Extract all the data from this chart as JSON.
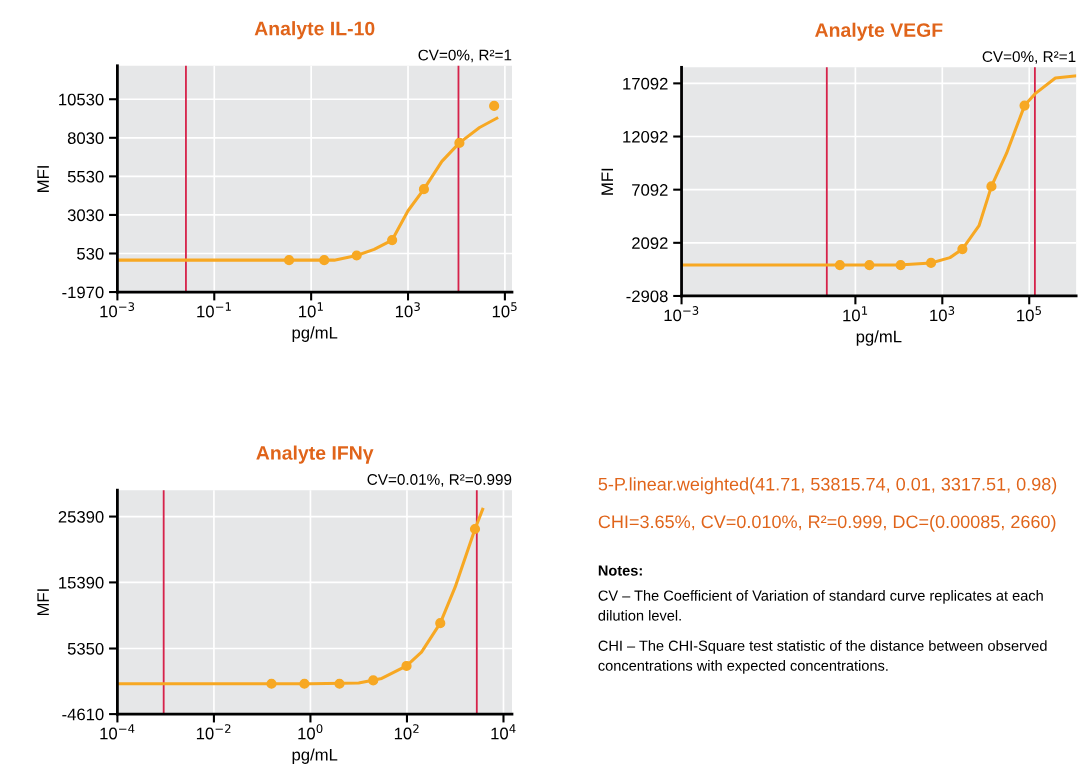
{
  "chart_data": [
    {
      "type": "line",
      "title": "Analyte IL-10",
      "xlabel": "pg/mL",
      "ylabel": "MFI",
      "annotations": [
        "CV=0%, R²=1"
      ],
      "log": "x",
      "grid": true,
      "xlim": [
        0.001,
        140000
      ],
      "ylim": [
        -1970,
        12700
      ],
      "xticks": [
        {
          "value": 0.001,
          "label": "10$^{−3}$"
        },
        {
          "value": 0.1,
          "label": "10$^{−1}$"
        },
        {
          "value": 10,
          "label": "10$^{1}$"
        },
        {
          "value": 1000,
          "label": "10$^{3}$"
        },
        {
          "value": 100000,
          "label": "10$^{5}$"
        }
      ],
      "yticks": [
        -1970,
        530,
        3030,
        5530,
        8030,
        10530
      ],
      "ref_lines": [
        {
          "axis": "x",
          "value": 0.026,
          "color": "#d6224a"
        },
        {
          "axis": "x",
          "value": 11000,
          "color": "#d6224a"
        }
      ],
      "series": [
        {
          "type": "line",
          "color": "#f7a823",
          "marker": "none",
          "x": [
            0.001,
            1,
            10,
            30,
            87,
            200,
            470,
            1000,
            2130,
            5000,
            11500,
            30000,
            68000
          ],
          "values": [
            100,
            100,
            100,
            100,
            400,
            800,
            1400,
            3300,
            4700,
            6500,
            7700,
            8700,
            9300
          ]
        },
        {
          "type": "scatter",
          "color": "#f7a823",
          "marker": "circle",
          "x": [
            3.5,
            18.6,
            87,
            470,
            2130,
            11500
          ],
          "values": [
            100,
            100,
            400,
            1400,
            4700,
            7700
          ]
        },
        {
          "type": "scatter",
          "color": "#f7a823",
          "marker": "circle",
          "x": [
            60000
          ],
          "values": [
            10100
          ]
        }
      ]
    },
    {
      "type": "line",
      "title": "Analyte VEGF",
      "xlabel": "pg/mL",
      "ylabel": "MFI",
      "annotations": [
        "CV=0%, R²=1"
      ],
      "log": "x",
      "grid": true,
      "xlim": [
        0.001,
        1200000
      ],
      "ylim": [
        -2908,
        18600
      ],
      "xticks": [
        {
          "value": 0.001,
          "label": "10$^{−3}$"
        },
        {
          "value": 10,
          "label": "10$^{1}$"
        },
        {
          "value": 1000,
          "label": "10$^{3}$"
        },
        {
          "value": 100000,
          "label": "10$^{5}$"
        }
      ],
      "yticks": [
        -2908,
        2092,
        7092,
        12092,
        17092
      ],
      "ref_lines": [
        {
          "axis": "x",
          "value": 2.2,
          "color": "#d6224a"
        },
        {
          "axis": "x",
          "value": 135000,
          "color": "#d6224a"
        }
      ],
      "series": [
        {
          "type": "line",
          "color": "#f7a823",
          "marker": "none",
          "x": [
            0.001,
            100,
            550,
            1500,
            2900,
            7000,
            13500,
            30000,
            78000,
            135000,
            400000,
            1200000
          ],
          "values": [
            0,
            0,
            200,
            700,
            1500,
            3700,
            7400,
            10500,
            15000,
            16100,
            17600,
            17800
          ]
        },
        {
          "type": "scatter",
          "color": "#f7a823",
          "marker": "circle",
          "x": [
            4.4,
            21,
            110,
            550,
            2900,
            13500,
            78000
          ],
          "values": [
            0,
            0,
            0,
            200,
            1500,
            7400,
            15000
          ]
        }
      ]
    },
    {
      "type": "line",
      "title": "Analyte IFNγ",
      "xlabel": "pg/mL",
      "ylabel": "MFI",
      "annotations": [
        "CV=0.01%, R²=0.999"
      ],
      "log": "x",
      "grid": true,
      "xlim": [
        0.0001,
        15000
      ],
      "ylim": [
        -4610,
        29400
      ],
      "xticks": [
        {
          "value": 0.0001,
          "label": "10$^{−4}$"
        },
        {
          "value": 0.01,
          "label": "10$^{−2}$"
        },
        {
          "value": 1,
          "label": "10$^{0}$"
        },
        {
          "value": 100,
          "label": "10$^{2}$"
        },
        {
          "value": 10000,
          "label": "10$^{4}$"
        }
      ],
      "yticks": [
        -4610,
        5350,
        15390,
        25390
      ],
      "ref_lines": [
        {
          "axis": "x",
          "value": 0.00091,
          "color": "#d6224a"
        },
        {
          "axis": "x",
          "value": 2800,
          "color": "#d6224a"
        }
      ],
      "series": [
        {
          "type": "line",
          "color": "#f7a823",
          "marker": "none",
          "x": [
            0.0001,
            1,
            10,
            30,
            98,
            200,
            490,
            1000,
            2570,
            3700
          ],
          "values": [
            0,
            0,
            100,
            800,
            2700,
            4800,
            9200,
            14700,
            23500,
            26500
          ]
        },
        {
          "type": "scatter",
          "color": "#f7a823",
          "marker": "circle",
          "x": [
            0.156,
            0.75,
            4.0,
            20,
            98,
            490,
            2570
          ],
          "values": [
            0,
            0,
            0,
            500,
            2700,
            9200,
            23500
          ]
        }
      ]
    },
    {
      "type": "other",
      "annotations": [
        "5-P.linear.weighted(41.71, 53815.74, 0.01, 3317.51, 0.98)",
        "CHI=3.65%, CV=0.010%, R²=0.999, DC=(0.00085, 2660)",
        "Notes:",
        "CV – The Coefficient of Variation of standard curve replicates at each dilution level.",
        "CHI – The CHI-Square test statistic of the distance between observed concentrations with expected concentrations."
      ]
    }
  ]
}
